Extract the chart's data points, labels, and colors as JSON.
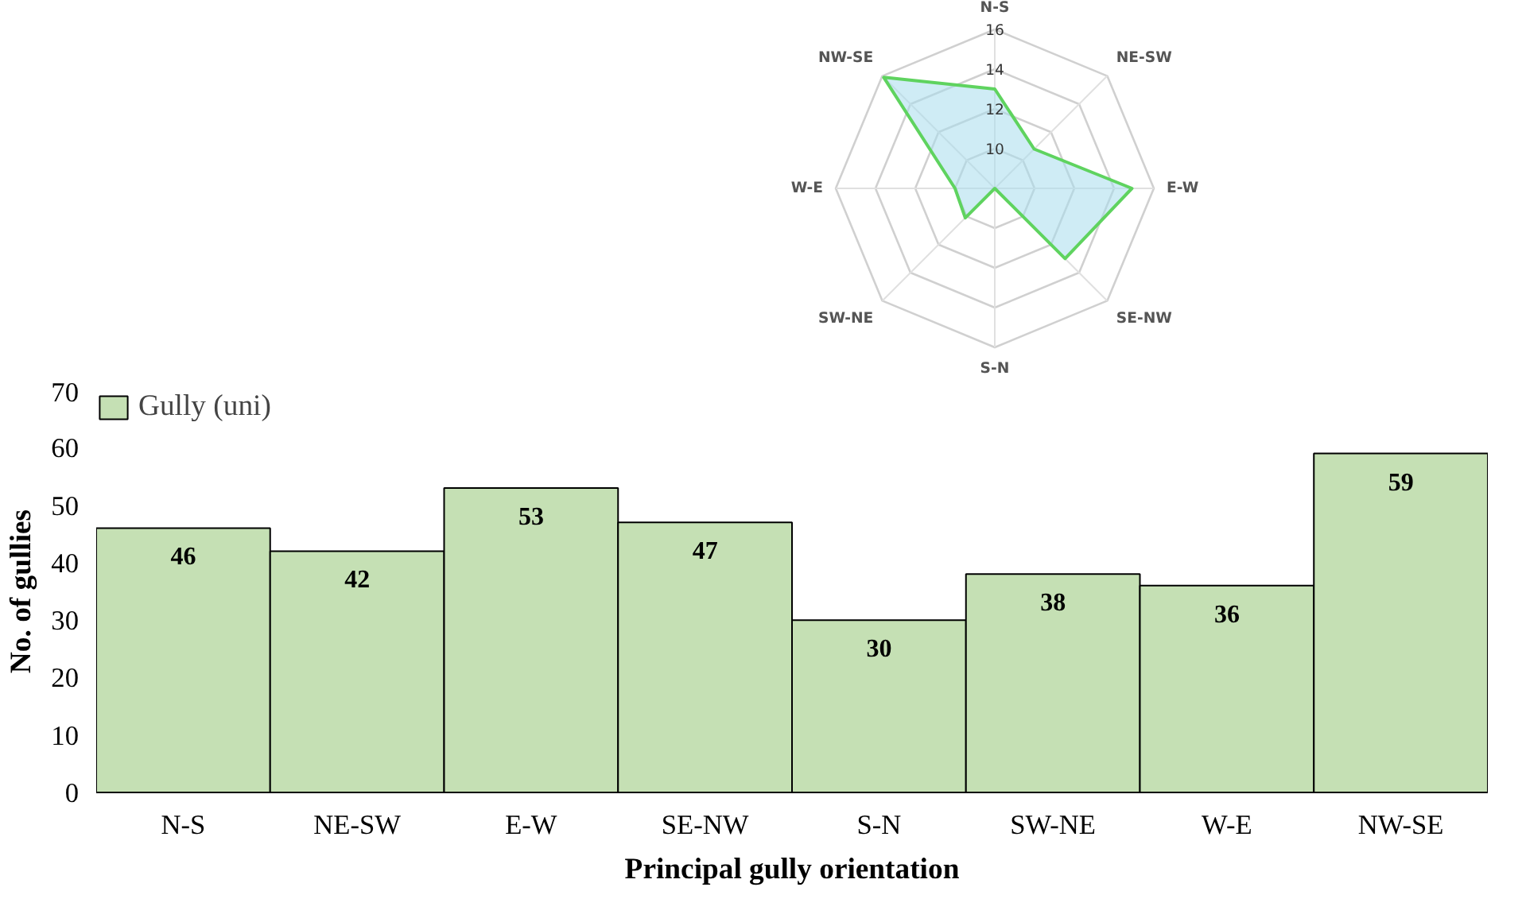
{
  "chart_data": [
    {
      "type": "bar",
      "xlabel": "Principal gully orientation",
      "ylabel": "No. of gullies",
      "categories": [
        "N-S",
        "NE-SW",
        "E-W",
        "SE-NW",
        "S-N",
        "SW-NE",
        "W-E",
        "NW-SE"
      ],
      "series": [
        {
          "name": "Gully (uni)",
          "color": "#c5e0b4",
          "values": [
            46,
            42,
            53,
            47,
            30,
            38,
            36,
            59
          ]
        }
      ],
      "ylim": [
        0,
        70
      ],
      "yticks": [
        0,
        10,
        20,
        30,
        40,
        50,
        60,
        70
      ],
      "data_labels": true,
      "grid": false,
      "legend": "top left"
    },
    {
      "type": "radar",
      "categories": [
        "N-S",
        "NE-SW",
        "E-W",
        "SE-NW",
        "S-N",
        "SW-NE",
        "W-E",
        "NW-SE"
      ],
      "series": [
        {
          "color": "#5fd35f",
          "values": [
            13,
            10.8,
            14.9,
            13,
            8,
            10.1,
            10,
            15.9
          ]
        }
      ],
      "ylim": [
        8,
        16
      ],
      "yticks": [
        10,
        12,
        14,
        16
      ]
    }
  ]
}
